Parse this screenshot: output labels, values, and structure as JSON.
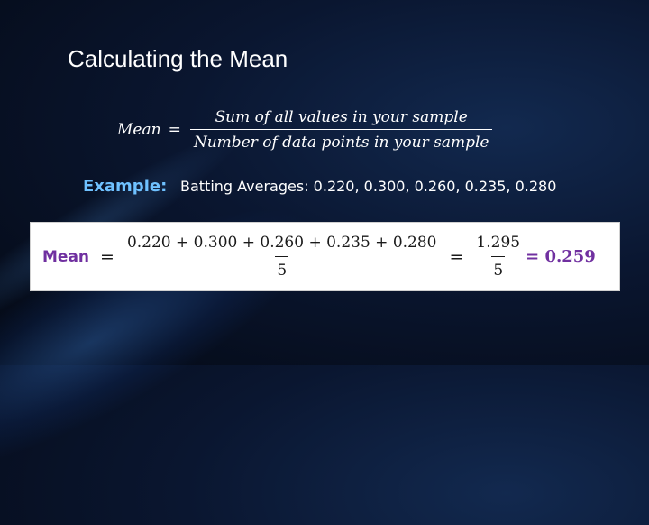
{
  "slide": {
    "title": "Calculating the Mean"
  },
  "formula": {
    "lhs": "Mean",
    "equals": "=",
    "numerator": "Sum of all values in your sample",
    "denominator": "Number of data points in your sample"
  },
  "example": {
    "label": "Example:",
    "text": "Batting Averages: 0.220, 0.300, 0.260, 0.235, 0.280"
  },
  "calculation": {
    "label": "Mean",
    "eq1": "=",
    "numerator": "0.220 + 0.300 + 0.260 + 0.235 + 0.280",
    "denominator": "5",
    "eq2": "=",
    "sum": "1.295",
    "count": "5",
    "result": "= 0.259"
  },
  "colors": {
    "accent_blue": "#6fc1ff",
    "accent_purple": "#7030a0",
    "background": "#0a1630"
  }
}
